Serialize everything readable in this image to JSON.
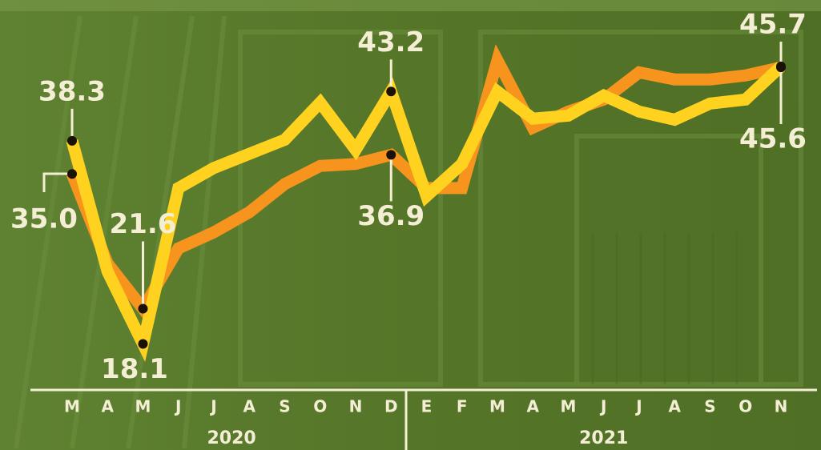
{
  "chart_data": {
    "type": "line",
    "category_groups": [
      {
        "label": "2020",
        "categories": [
          "M",
          "A",
          "M",
          "J",
          "J",
          "A",
          "S",
          "O",
          "N",
          "D"
        ]
      },
      {
        "label": "2021",
        "categories": [
          "E",
          "F",
          "M",
          "A",
          "M",
          "J",
          "J",
          "A",
          "S",
          "O",
          "N"
        ]
      }
    ],
    "ylim": [
      14,
      48
    ],
    "series": [
      {
        "color": "#f7941d",
        "values": [
          35.0,
          26.1,
          21.6,
          27.6,
          29.2,
          31.2,
          34.0,
          35.8,
          36.0,
          36.9,
          33.6,
          33.6,
          46.3,
          39.6,
          41.2,
          42.4,
          45.1,
          44.4,
          44.4,
          44.8,
          45.6
        ],
        "value_labels": [
          "35.0",
          null,
          "21.6",
          null,
          null,
          null,
          null,
          null,
          null,
          "36.9",
          null,
          null,
          null,
          null,
          null,
          null,
          null,
          null,
          null,
          null,
          "45.6"
        ]
      },
      {
        "color": "#ffd21f",
        "values": [
          38.3,
          25.3,
          18.1,
          33.6,
          35.6,
          37.0,
          38.4,
          42.1,
          37.4,
          43.2,
          32.8,
          36.0,
          43.2,
          40.5,
          40.8,
          42.8,
          41.2,
          40.4,
          42.0,
          42.4,
          45.7
        ],
        "value_labels": [
          "38.3",
          null,
          "18.1",
          null,
          null,
          null,
          null,
          null,
          null,
          "43.2",
          null,
          null,
          null,
          null,
          null,
          null,
          null,
          null,
          null,
          null,
          "45.7"
        ]
      }
    ]
  }
}
